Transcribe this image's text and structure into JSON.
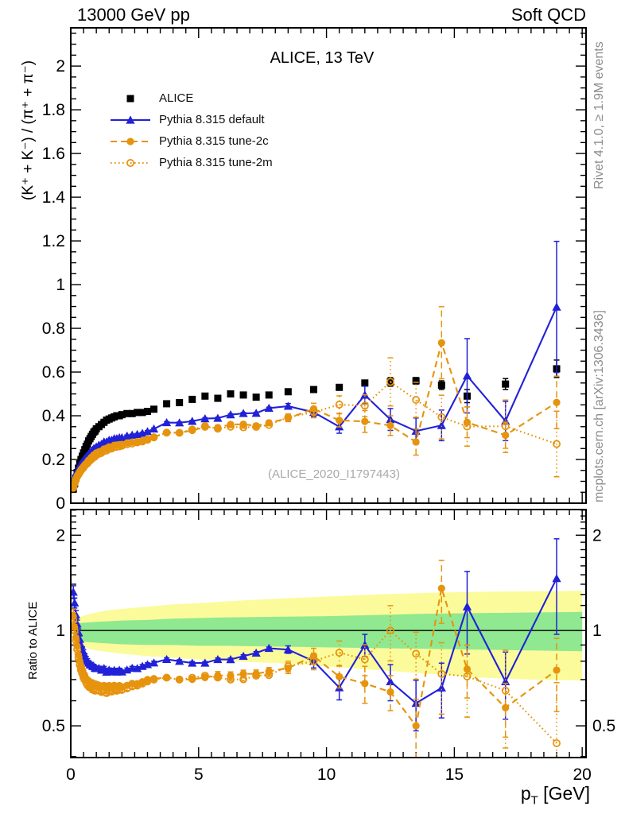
{
  "page": {
    "background": "#ffffff"
  },
  "header": {
    "left": "13000 GeV pp",
    "right": "Soft QCD"
  },
  "main_panel": {
    "title": "ALICE, 13 TeV",
    "ylabel": "(K⁺ + K⁻) / (π⁺ + π⁻)",
    "watermark": "(ALICE_2020_I1797443)"
  },
  "ratio_panel": {
    "ylabel": "Ratio to ALICE"
  },
  "x_axis": {
    "label_pre": "p",
    "label_sub": "T",
    "label_post": " [GeV]"
  },
  "credits": {
    "top": "Rivet 4.1.0, ≥ 1.9M events",
    "bottom": "mcplots.cern.ch [arXiv:1306.3436]"
  },
  "colors": {
    "data": "#000000",
    "pythia_default": "#2121d8",
    "pythia_tunes": "#e6930e",
    "band_green": "#90e890",
    "band_yellow": "#fbfb9b",
    "credit_gray": "#8c8c8c"
  },
  "chart_data": [
    {
      "id": "main",
      "type": "line",
      "title": "ALICE, 13 TeV",
      "xlabel": "pT [GeV]",
      "ylabel": "(K+ + K-) / (pi+ + pi-)",
      "xlim": [
        0,
        20.15
      ],
      "ylim": [
        0,
        2.175
      ],
      "grid": false,
      "legend_position": "top-left",
      "yticks": {
        "values": [
          0,
          0.2,
          0.4,
          0.6,
          0.8,
          1,
          1.2,
          1.4,
          1.6,
          1.8,
          2
        ],
        "labels": [
          "0",
          "0.2",
          "0.4",
          "0.6",
          "0.8",
          "1",
          "1.2",
          "1.4",
          "1.6",
          "1.8",
          "2"
        ]
      },
      "xticks": {
        "values": [
          0,
          5,
          10,
          15,
          20
        ],
        "labels": [
          "0",
          "5",
          "10",
          "15",
          "20"
        ]
      },
      "x": [
        0.1,
        0.15,
        0.2,
        0.25,
        0.3,
        0.35,
        0.4,
        0.45,
        0.5,
        0.55,
        0.6,
        0.65,
        0.7,
        0.75,
        0.8,
        0.85,
        0.9,
        0.95,
        1.0,
        1.1,
        1.2,
        1.3,
        1.4,
        1.5,
        1.6,
        1.7,
        1.8,
        1.9,
        2.0,
        2.2,
        2.4,
        2.6,
        2.8,
        3.0,
        3.25,
        3.75,
        4.25,
        4.75,
        5.25,
        5.75,
        6.25,
        6.75,
        7.25,
        7.75,
        8.5,
        9.5,
        10.5,
        11.5,
        12.5,
        13.5,
        14.5,
        15.5,
        17.0,
        19.0
      ],
      "series": [
        {
          "name": "ALICE",
          "color": "#000000",
          "marker": "square",
          "line": "none",
          "values": [
            0.065,
            0.09,
            0.115,
            0.14,
            0.16,
            0.18,
            0.2,
            0.215,
            0.23,
            0.245,
            0.26,
            0.27,
            0.285,
            0.295,
            0.305,
            0.315,
            0.325,
            0.33,
            0.34,
            0.35,
            0.36,
            0.37,
            0.38,
            0.385,
            0.39,
            0.395,
            0.4,
            0.4,
            0.405,
            0.41,
            0.41,
            0.415,
            0.415,
            0.42,
            0.43,
            0.455,
            0.46,
            0.475,
            0.49,
            0.48,
            0.5,
            0.495,
            0.485,
            0.495,
            0.51,
            0.52,
            0.53,
            0.55,
            0.555,
            0.56,
            0.54,
            0.49,
            0.545,
            0.615
          ],
          "errors": [
            0.004,
            0.004,
            0.004,
            0.004,
            0.004,
            0.004,
            0.004,
            0.004,
            0.004,
            0.004,
            0.004,
            0.004,
            0.004,
            0.004,
            0.004,
            0.004,
            0.004,
            0.004,
            0.004,
            0.004,
            0.004,
            0.004,
            0.004,
            0.004,
            0.004,
            0.004,
            0.004,
            0.004,
            0.004,
            0.004,
            0.004,
            0.004,
            0.004,
            0.004,
            0.004,
            0.004,
            0.004,
            0.004,
            0.004,
            0.004,
            0.004,
            0.004,
            0.004,
            0.004,
            0.004,
            0.008,
            0.01,
            0.012,
            0.02,
            0.015,
            0.02,
            0.03,
            0.025,
            0.04
          ]
        },
        {
          "name": "Pythia 8.315 default",
          "color": "#2121d8",
          "marker": "triangle",
          "line": "solid",
          "values": [
            0.086,
            0.11,
            0.129,
            0.147,
            0.158,
            0.169,
            0.18,
            0.187,
            0.196,
            0.203,
            0.211,
            0.216,
            0.225,
            0.23,
            0.238,
            0.243,
            0.25,
            0.251,
            0.258,
            0.266,
            0.27,
            0.281,
            0.281,
            0.289,
            0.289,
            0.296,
            0.296,
            0.3,
            0.3,
            0.308,
            0.312,
            0.315,
            0.32,
            0.328,
            0.34,
            0.369,
            0.368,
            0.375,
            0.387,
            0.389,
            0.405,
            0.411,
            0.412,
            0.435,
            0.444,
            0.416,
            0.35,
            0.495,
            0.383,
            0.33,
            0.356,
            0.583,
            0.376,
            0.898
          ],
          "errors": [
            0.004,
            0.004,
            0.004,
            0.004,
            0.004,
            0.004,
            0.004,
            0.004,
            0.004,
            0.004,
            0.004,
            0.004,
            0.004,
            0.004,
            0.004,
            0.004,
            0.004,
            0.004,
            0.004,
            0.004,
            0.004,
            0.004,
            0.004,
            0.004,
            0.004,
            0.004,
            0.004,
            0.004,
            0.004,
            0.004,
            0.004,
            0.004,
            0.004,
            0.004,
            0.004,
            0.004,
            0.004,
            0.004,
            0.004,
            0.004,
            0.004,
            0.004,
            0.004,
            0.004,
            0.012,
            0.02,
            0.03,
            0.04,
            0.05,
            0.06,
            0.07,
            0.17,
            0.09,
            0.3
          ]
        },
        {
          "name": "Pythia 8.315 tune-2c",
          "color": "#e6930e",
          "marker": "circle",
          "line": "dashed",
          "values": [
            0.072,
            0.092,
            0.109,
            0.125,
            0.134,
            0.144,
            0.154,
            0.161,
            0.168,
            0.176,
            0.182,
            0.188,
            0.197,
            0.201,
            0.209,
            0.213,
            0.221,
            0.221,
            0.23,
            0.235,
            0.239,
            0.248,
            0.251,
            0.258,
            0.257,
            0.265,
            0.266,
            0.268,
            0.269,
            0.275,
            0.279,
            0.282,
            0.286,
            0.294,
            0.303,
            0.323,
            0.322,
            0.333,
            0.348,
            0.346,
            0.36,
            0.361,
            0.354,
            0.368,
            0.388,
            0.432,
            0.379,
            0.374,
            0.355,
            0.28,
            0.734,
            0.37,
            0.311,
            0.461
          ],
          "errors": [
            0.004,
            0.004,
            0.004,
            0.004,
            0.004,
            0.004,
            0.004,
            0.004,
            0.004,
            0.004,
            0.004,
            0.004,
            0.004,
            0.004,
            0.004,
            0.004,
            0.004,
            0.004,
            0.004,
            0.004,
            0.004,
            0.004,
            0.004,
            0.004,
            0.004,
            0.004,
            0.004,
            0.004,
            0.004,
            0.004,
            0.004,
            0.004,
            0.004,
            0.004,
            0.004,
            0.004,
            0.004,
            0.004,
            0.004,
            0.01,
            0.01,
            0.01,
            0.01,
            0.01,
            0.015,
            0.025,
            0.03,
            0.05,
            0.045,
            0.06,
            0.165,
            0.07,
            0.06,
            0.12
          ]
        },
        {
          "name": "Pythia 8.315 tune-2m",
          "color": "#e6930e",
          "marker": "circle-open",
          "line": "dotted",
          "values": [
            0.07,
            0.09,
            0.107,
            0.122,
            0.131,
            0.14,
            0.15,
            0.157,
            0.163,
            0.172,
            0.178,
            0.182,
            0.19,
            0.195,
            0.201,
            0.205,
            0.213,
            0.213,
            0.221,
            0.226,
            0.23,
            0.239,
            0.241,
            0.248,
            0.25,
            0.257,
            0.258,
            0.26,
            0.263,
            0.269,
            0.273,
            0.278,
            0.282,
            0.29,
            0.301,
            0.323,
            0.322,
            0.337,
            0.353,
            0.341,
            0.35,
            0.347,
            0.349,
            0.358,
            0.393,
            0.416,
            0.451,
            0.446,
            0.555,
            0.473,
            0.394,
            0.351,
            0.352,
            0.271
          ],
          "errors": [
            0.004,
            0.004,
            0.004,
            0.004,
            0.004,
            0.004,
            0.004,
            0.004,
            0.004,
            0.004,
            0.004,
            0.004,
            0.004,
            0.004,
            0.004,
            0.004,
            0.004,
            0.004,
            0.004,
            0.004,
            0.004,
            0.004,
            0.004,
            0.004,
            0.004,
            0.004,
            0.004,
            0.004,
            0.004,
            0.004,
            0.004,
            0.004,
            0.004,
            0.004,
            0.004,
            0.004,
            0.004,
            0.004,
            0.004,
            0.004,
            0.004,
            0.004,
            0.004,
            0.004,
            0.015,
            0.025,
            0.04,
            0.05,
            0.11,
            0.08,
            0.1,
            0.09,
            0.12,
            0.15
          ]
        }
      ]
    },
    {
      "id": "ratio",
      "type": "ratio",
      "ylabel": "Ratio to ALICE",
      "yscale": "log",
      "ylim": [
        0.397,
        2.41
      ],
      "reference": 1,
      "yticks": {
        "values": [
          0.5,
          1,
          2
        ],
        "labels": [
          "0.5",
          "1",
          "2"
        ]
      },
      "note": "ratio curves = series values / ALICE values from the main panel",
      "bands": {
        "x": [
          0.1,
          0.3,
          0.6,
          1.0,
          1.5,
          2.0,
          3.0,
          4.0,
          5.0,
          6.0,
          8.0,
          10.0,
          12.0,
          14.0,
          16.0,
          18.0,
          20.0
        ],
        "green_lo": [
          0.95,
          0.93,
          0.92,
          0.915,
          0.91,
          0.905,
          0.9,
          0.9,
          0.895,
          0.895,
          0.89,
          0.885,
          0.88,
          0.875,
          0.87,
          0.865,
          0.86
        ],
        "green_hi": [
          1.05,
          1.055,
          1.06,
          1.065,
          1.07,
          1.075,
          1.08,
          1.09,
          1.095,
          1.1,
          1.105,
          1.11,
          1.12,
          1.13,
          1.135,
          1.14,
          1.145
        ],
        "yellow_lo": [
          0.92,
          0.9,
          0.88,
          0.865,
          0.855,
          0.845,
          0.83,
          0.82,
          0.81,
          0.8,
          0.79,
          0.77,
          0.75,
          0.73,
          0.71,
          0.7,
          0.695
        ],
        "yellow_hi": [
          1.09,
          1.1,
          1.12,
          1.14,
          1.16,
          1.17,
          1.19,
          1.21,
          1.22,
          1.235,
          1.26,
          1.28,
          1.3,
          1.315,
          1.325,
          1.33,
          1.335
        ],
        "green_color": "#90e890",
        "yellow_color": "#fbfb9b"
      }
    }
  ]
}
